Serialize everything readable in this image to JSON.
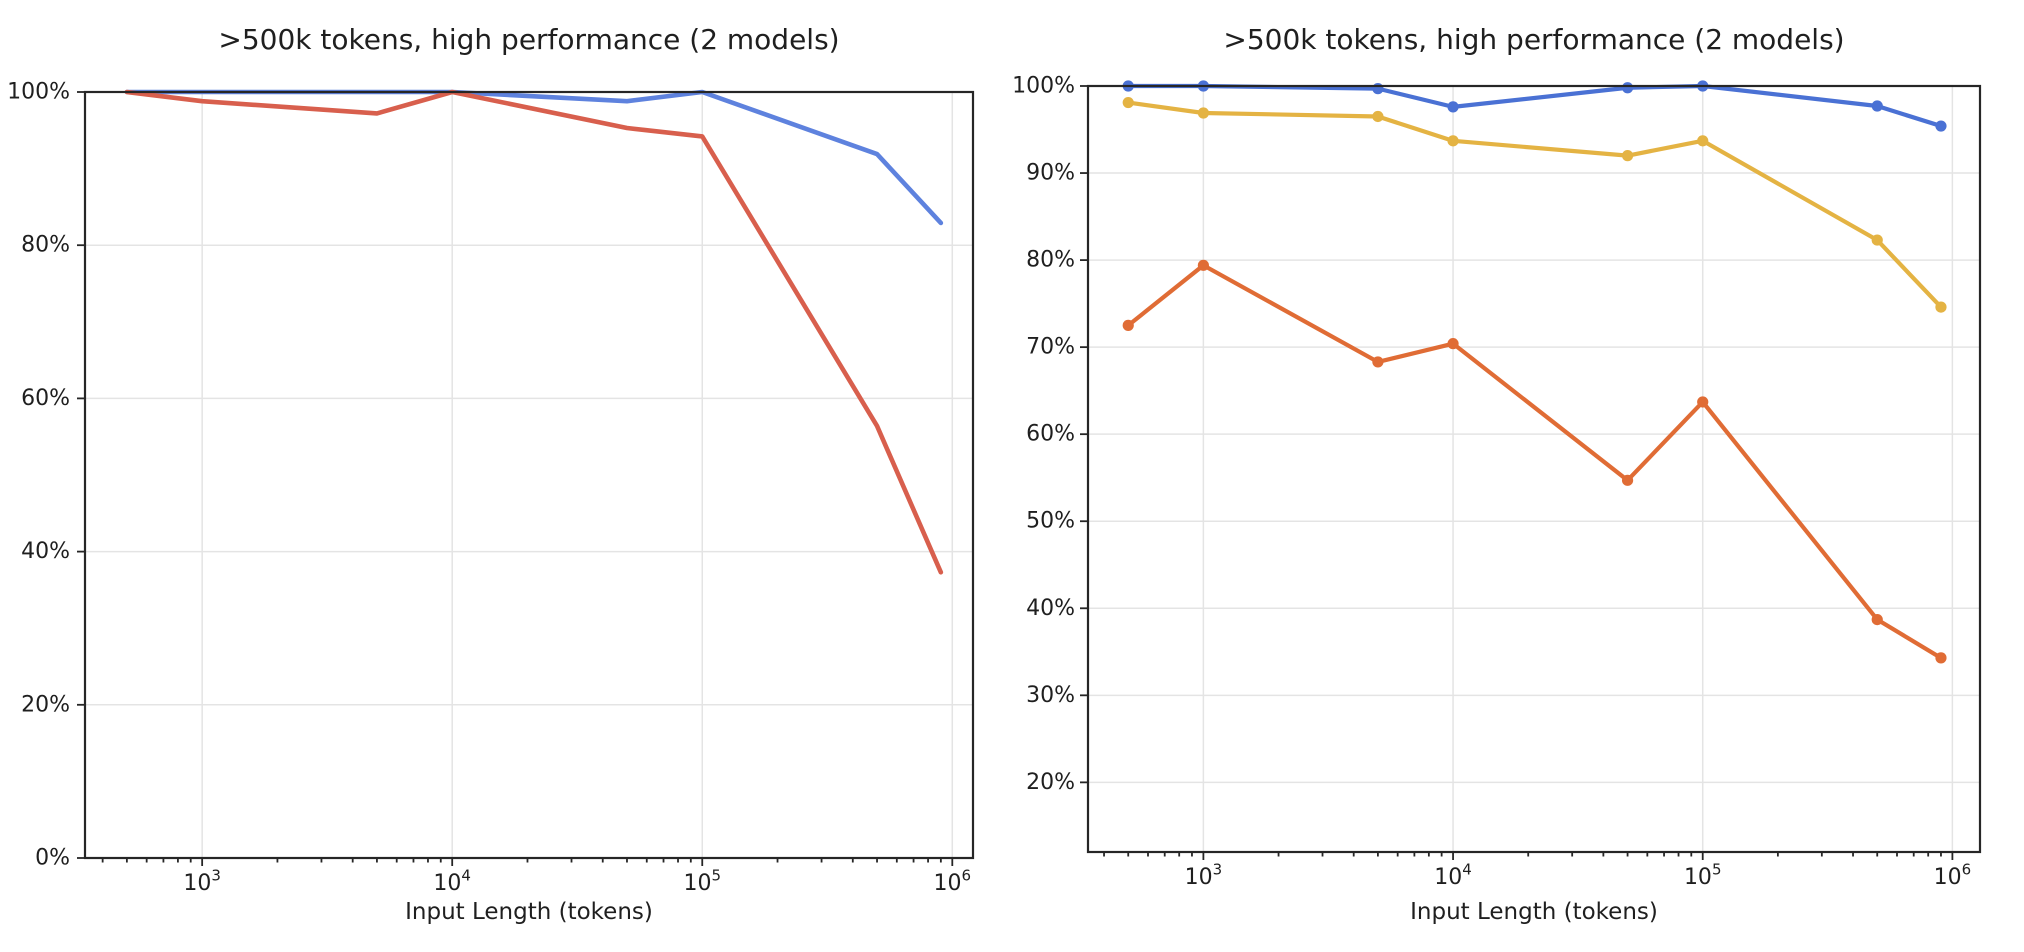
{
  "figure": {
    "background_color": "#ffffff",
    "frame_color": "#262626",
    "grid_color": "#e4e4e4",
    "text_color": "#1f1f1f"
  },
  "chart_data": [
    {
      "type": "line",
      "panel": "left",
      "title": ">500k tokens, high performance (2 models)",
      "xlabel": "Input Length (tokens)",
      "x_scale": "log",
      "grid": true,
      "legend": null,
      "xlim": [
        340,
        1210000
      ],
      "ylim": [
        0,
        100
      ],
      "x_ticks": [
        {
          "value": 1000,
          "base": "10",
          "exp": "3"
        },
        {
          "value": 10000,
          "base": "10",
          "exp": "4"
        },
        {
          "value": 100000,
          "base": "10",
          "exp": "5"
        },
        {
          "value": 1000000,
          "base": "10",
          "exp": "6"
        }
      ],
      "y_ticks": [
        {
          "value": 0,
          "label": "0%"
        },
        {
          "value": 20,
          "label": "20%"
        },
        {
          "value": 40,
          "label": "40%"
        },
        {
          "value": 60,
          "label": "60%"
        },
        {
          "value": 80,
          "label": "80%"
        },
        {
          "value": 100,
          "label": "100%"
        }
      ],
      "x": [
        500,
        1000,
        5000,
        10000,
        50000,
        100000,
        500000,
        900000
      ],
      "series": [
        {
          "name": "blue-line",
          "color": "#5e82de",
          "markers": false,
          "values": [
            100,
            100,
            100,
            100,
            98.8,
            100,
            91.9,
            82.9
          ]
        },
        {
          "name": "red-line",
          "color": "#d85f4d",
          "markers": false,
          "values": [
            100,
            98.8,
            97.2,
            100,
            95.3,
            94.2,
            56.4,
            37.3
          ]
        }
      ]
    },
    {
      "type": "line",
      "panel": "right",
      "title": ">500k tokens, high performance (2 models)",
      "xlabel": "Input Length (tokens)",
      "x_scale": "log",
      "grid": true,
      "legend": null,
      "xlim": [
        345,
        1290000
      ],
      "ylim": [
        12,
        100
      ],
      "x_ticks": [
        {
          "value": 1000,
          "base": "10",
          "exp": "3"
        },
        {
          "value": 10000,
          "base": "10",
          "exp": "4"
        },
        {
          "value": 100000,
          "base": "10",
          "exp": "5"
        },
        {
          "value": 1000000,
          "base": "10",
          "exp": "6"
        }
      ],
      "y_ticks": [
        {
          "value": 20,
          "label": "20%"
        },
        {
          "value": 30,
          "label": "30%"
        },
        {
          "value": 40,
          "label": "40%"
        },
        {
          "value": 50,
          "label": "50%"
        },
        {
          "value": 60,
          "label": "60%"
        },
        {
          "value": 70,
          "label": "70%"
        },
        {
          "value": 80,
          "label": "80%"
        },
        {
          "value": 90,
          "label": "90%"
        },
        {
          "value": 100,
          "label": "100%"
        }
      ],
      "x": [
        500,
        1000,
        5000,
        10000,
        50000,
        100000,
        500000,
        900000
      ],
      "series": [
        {
          "name": "blue-line",
          "color": "#4a71d4",
          "markers": true,
          "values": [
            100,
            100,
            99.7,
            97.6,
            99.8,
            100,
            97.7,
            95.4
          ]
        },
        {
          "name": "yellow-line",
          "color": "#e4b343",
          "markers": true,
          "values": [
            98.1,
            96.9,
            96.5,
            93.7,
            92.0,
            93.7,
            82.3,
            74.6
          ]
        },
        {
          "name": "orange-line",
          "color": "#e06c35",
          "markers": true,
          "values": [
            72.5,
            79.4,
            68.3,
            70.4,
            54.7,
            63.7,
            38.7,
            34.3
          ]
        }
      ]
    }
  ]
}
